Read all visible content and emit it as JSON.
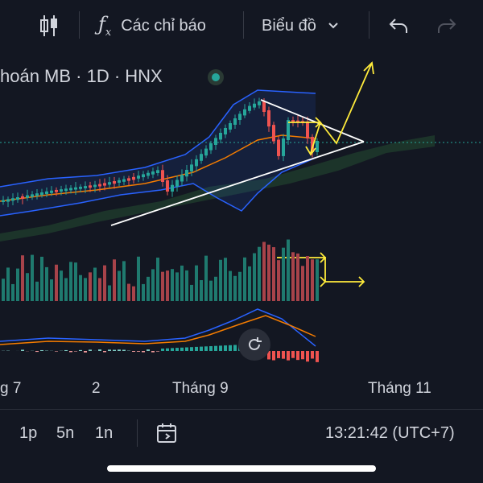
{
  "toolbar": {
    "indicators_label": "Các chỉ báo",
    "chart_type_label": "Biểu đồ"
  },
  "symbol": {
    "title": "hoán MB · 1D · HNX"
  },
  "colors": {
    "background": "#131722",
    "up": "#26a69a",
    "down": "#ef5350",
    "band": "#2962ff",
    "ma": "#f57c00",
    "annotation_yellow": "#ffeb3b",
    "annotation_white": "#ffffff"
  },
  "x_axis": {
    "labels": [
      "g 7",
      "2",
      "Tháng 9",
      "Tháng 11"
    ]
  },
  "bottom": {
    "intervals": [
      "1p",
      "5n",
      "1n"
    ],
    "clock": "13:21:42 (UTC+7)"
  },
  "icons": {
    "candles": "candlestick-icon",
    "fx": "fx-icon",
    "chevron": "chevron-down-icon",
    "undo": "undo-icon",
    "redo": "redo-icon",
    "reset": "reset-icon",
    "date_range": "date-range-icon"
  },
  "chart_data": {
    "type": "candlestick",
    "series": [
      {
        "name": "price",
        "values": []
      },
      {
        "name": "volume",
        "values": []
      },
      {
        "name": "macd",
        "values": []
      }
    ]
  }
}
